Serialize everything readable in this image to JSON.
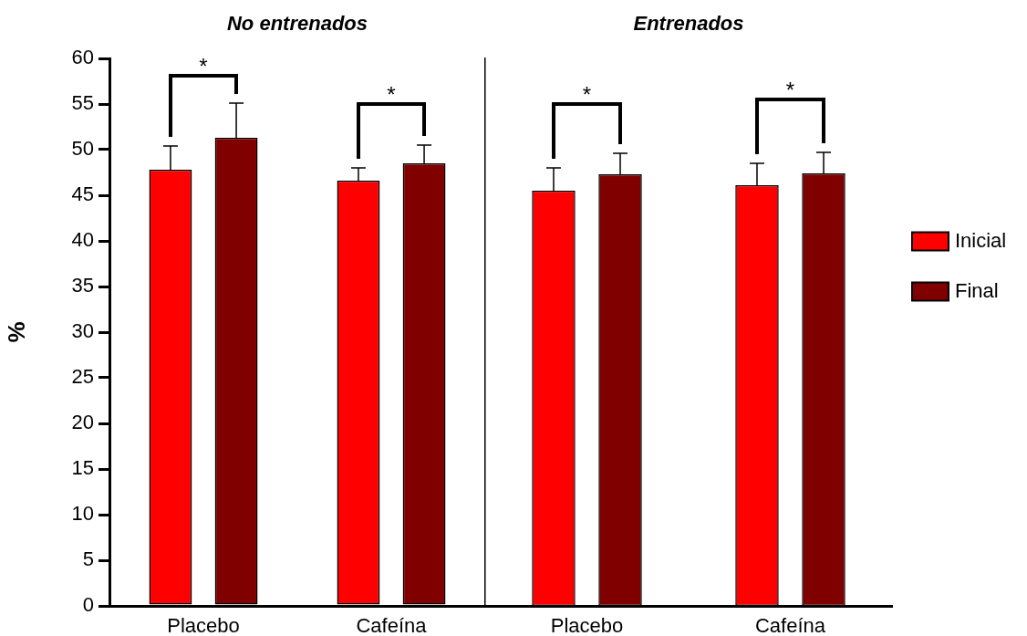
{
  "chart_data": [
    {
      "type": "bar",
      "title": "No entrenados",
      "ylabel": "%",
      "categories": [
        "Placebo",
        "Cafeína"
      ],
      "series": [
        {
          "color": "#ff0000",
          "values": [
            47.8,
            46.6
          ],
          "errors": [
            [
              47.8,
              50.4
            ],
            [
              46.6,
              48.0
            ]
          ]
        },
        {
          "color": "#800000",
          "values": [
            51.3,
            48.5
          ],
          "errors": [
            [
              51.3,
              55.1
            ],
            [
              48.5,
              50.5
            ]
          ]
        }
      ],
      "ylim": [
        0,
        60
      ],
      "yticks": [
        0,
        5,
        10,
        15,
        20,
        25,
        30,
        35,
        40,
        45,
        50,
        55,
        60
      ],
      "annotations": [
        "*",
        "*"
      ]
    },
    {
      "type": "bar",
      "title": "Entrenados",
      "categories": [
        "Placebo",
        "Cafeína"
      ],
      "series": [
        {
          "name": "Inicial",
          "color": "#ff0000",
          "values": [
            45.5,
            46.1
          ],
          "errors": [
            [
              45.5,
              48.0
            ],
            [
              46.1,
              48.5
            ]
          ]
        },
        {
          "name": "Final",
          "color": "#800000",
          "values": [
            47.3,
            47.4
          ],
          "errors": [
            [
              47.3,
              49.6
            ],
            [
              47.4,
              49.7
            ]
          ]
        }
      ],
      "ylim": [
        0,
        60
      ],
      "yticks": [
        0,
        5,
        10,
        15,
        20,
        25,
        30,
        35,
        40,
        45,
        50,
        55,
        60
      ],
      "tick_labels": "x",
      "legend": "right",
      "annotations": [
        "*",
        "*"
      ]
    }
  ]
}
